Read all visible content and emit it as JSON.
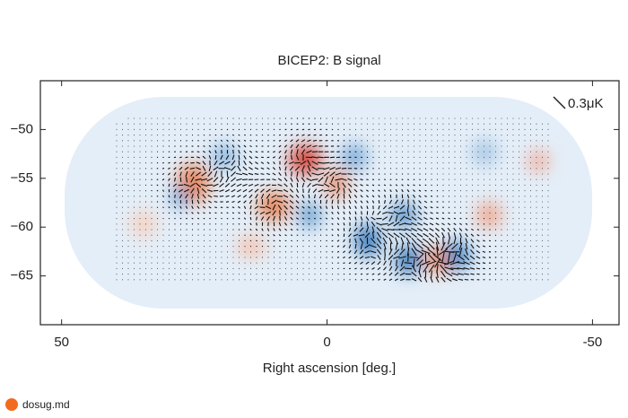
{
  "chart_data": {
    "type": "map",
    "title": "BICEP2: B signal",
    "x_label": "Right ascension [deg.]",
    "annotation": "0.3μK",
    "xlim": [
      54,
      -55
    ],
    "xticks": [
      50,
      0,
      -50
    ],
    "ylim": [
      -70,
      -45
    ],
    "yticks": [
      {
        "value": -50,
        "label": "−50"
      },
      {
        "value": -55,
        "label": "−55"
      },
      {
        "value": -60,
        "label": "−60"
      },
      {
        "value": -65,
        "label": "−65"
      }
    ],
    "watermark": "dosug.md"
  }
}
